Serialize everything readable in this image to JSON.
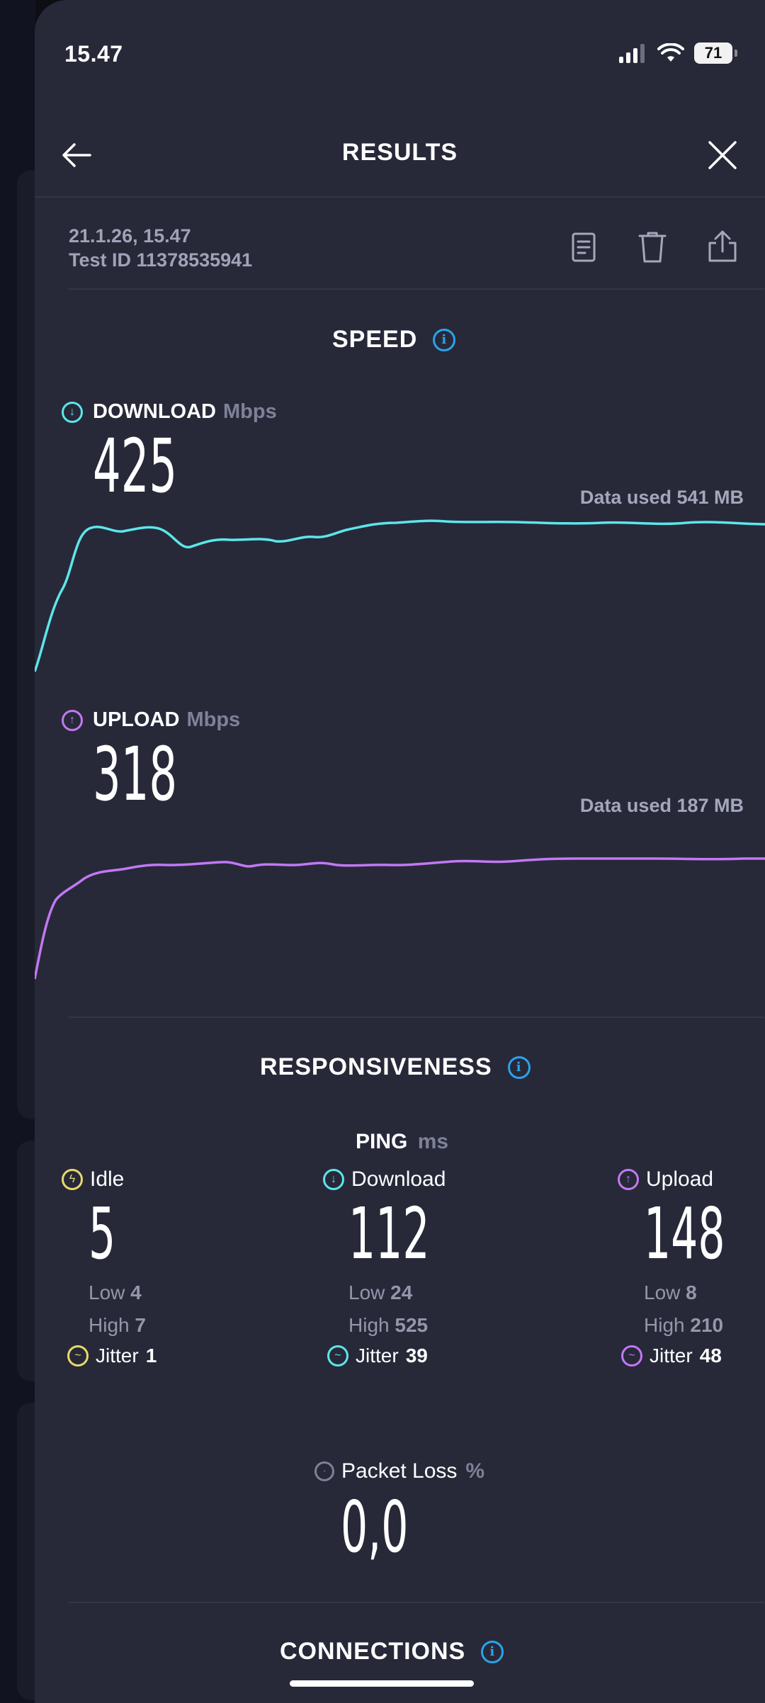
{
  "status_bar": {
    "time": "15.47",
    "battery": "71"
  },
  "header": {
    "title": "RESULTS"
  },
  "test_info": {
    "datetime": "21.1.26, 15.47",
    "test_id": "Test ID 11378535941"
  },
  "speed": {
    "title": "SPEED",
    "download": {
      "label": "DOWNLOAD",
      "unit": "Mbps",
      "value": "425",
      "data_used": "Data used 541 MB"
    },
    "upload": {
      "label": "UPLOAD",
      "unit": "Mbps",
      "value": "318",
      "data_used": "Data used 187 MB"
    }
  },
  "responsiveness": {
    "title": "RESPONSIVENESS",
    "ping_label": "PING",
    "ping_unit": "ms",
    "columns": [
      {
        "label": "Idle",
        "value": "5",
        "low_label": "Low",
        "low": "4",
        "high_label": "High",
        "high": "7",
        "jitter_label": "Jitter",
        "jitter": "1"
      },
      {
        "label": "Download",
        "value": "112",
        "low_label": "Low",
        "low": "24",
        "high_label": "High",
        "high": "525",
        "jitter_label": "Jitter",
        "jitter": "39"
      },
      {
        "label": "Upload",
        "value": "148",
        "low_label": "Low",
        "low": "8",
        "high_label": "High",
        "high": "210",
        "jitter_label": "Jitter",
        "jitter": "48"
      }
    ],
    "packet_loss": {
      "label": "Packet Loss",
      "unit": "%",
      "value": "0,0"
    }
  },
  "connections": {
    "title": "CONNECTIONS"
  },
  "colors": {
    "download": "#5de6ea",
    "upload": "#c278f4",
    "idle": "#e9d86a",
    "info": "#2aa3ec",
    "background": "#272939"
  },
  "icons": {
    "back": "arrow-left-icon",
    "close": "close-icon",
    "report": "document-icon",
    "delete": "trash-icon",
    "share": "share-icon"
  }
}
